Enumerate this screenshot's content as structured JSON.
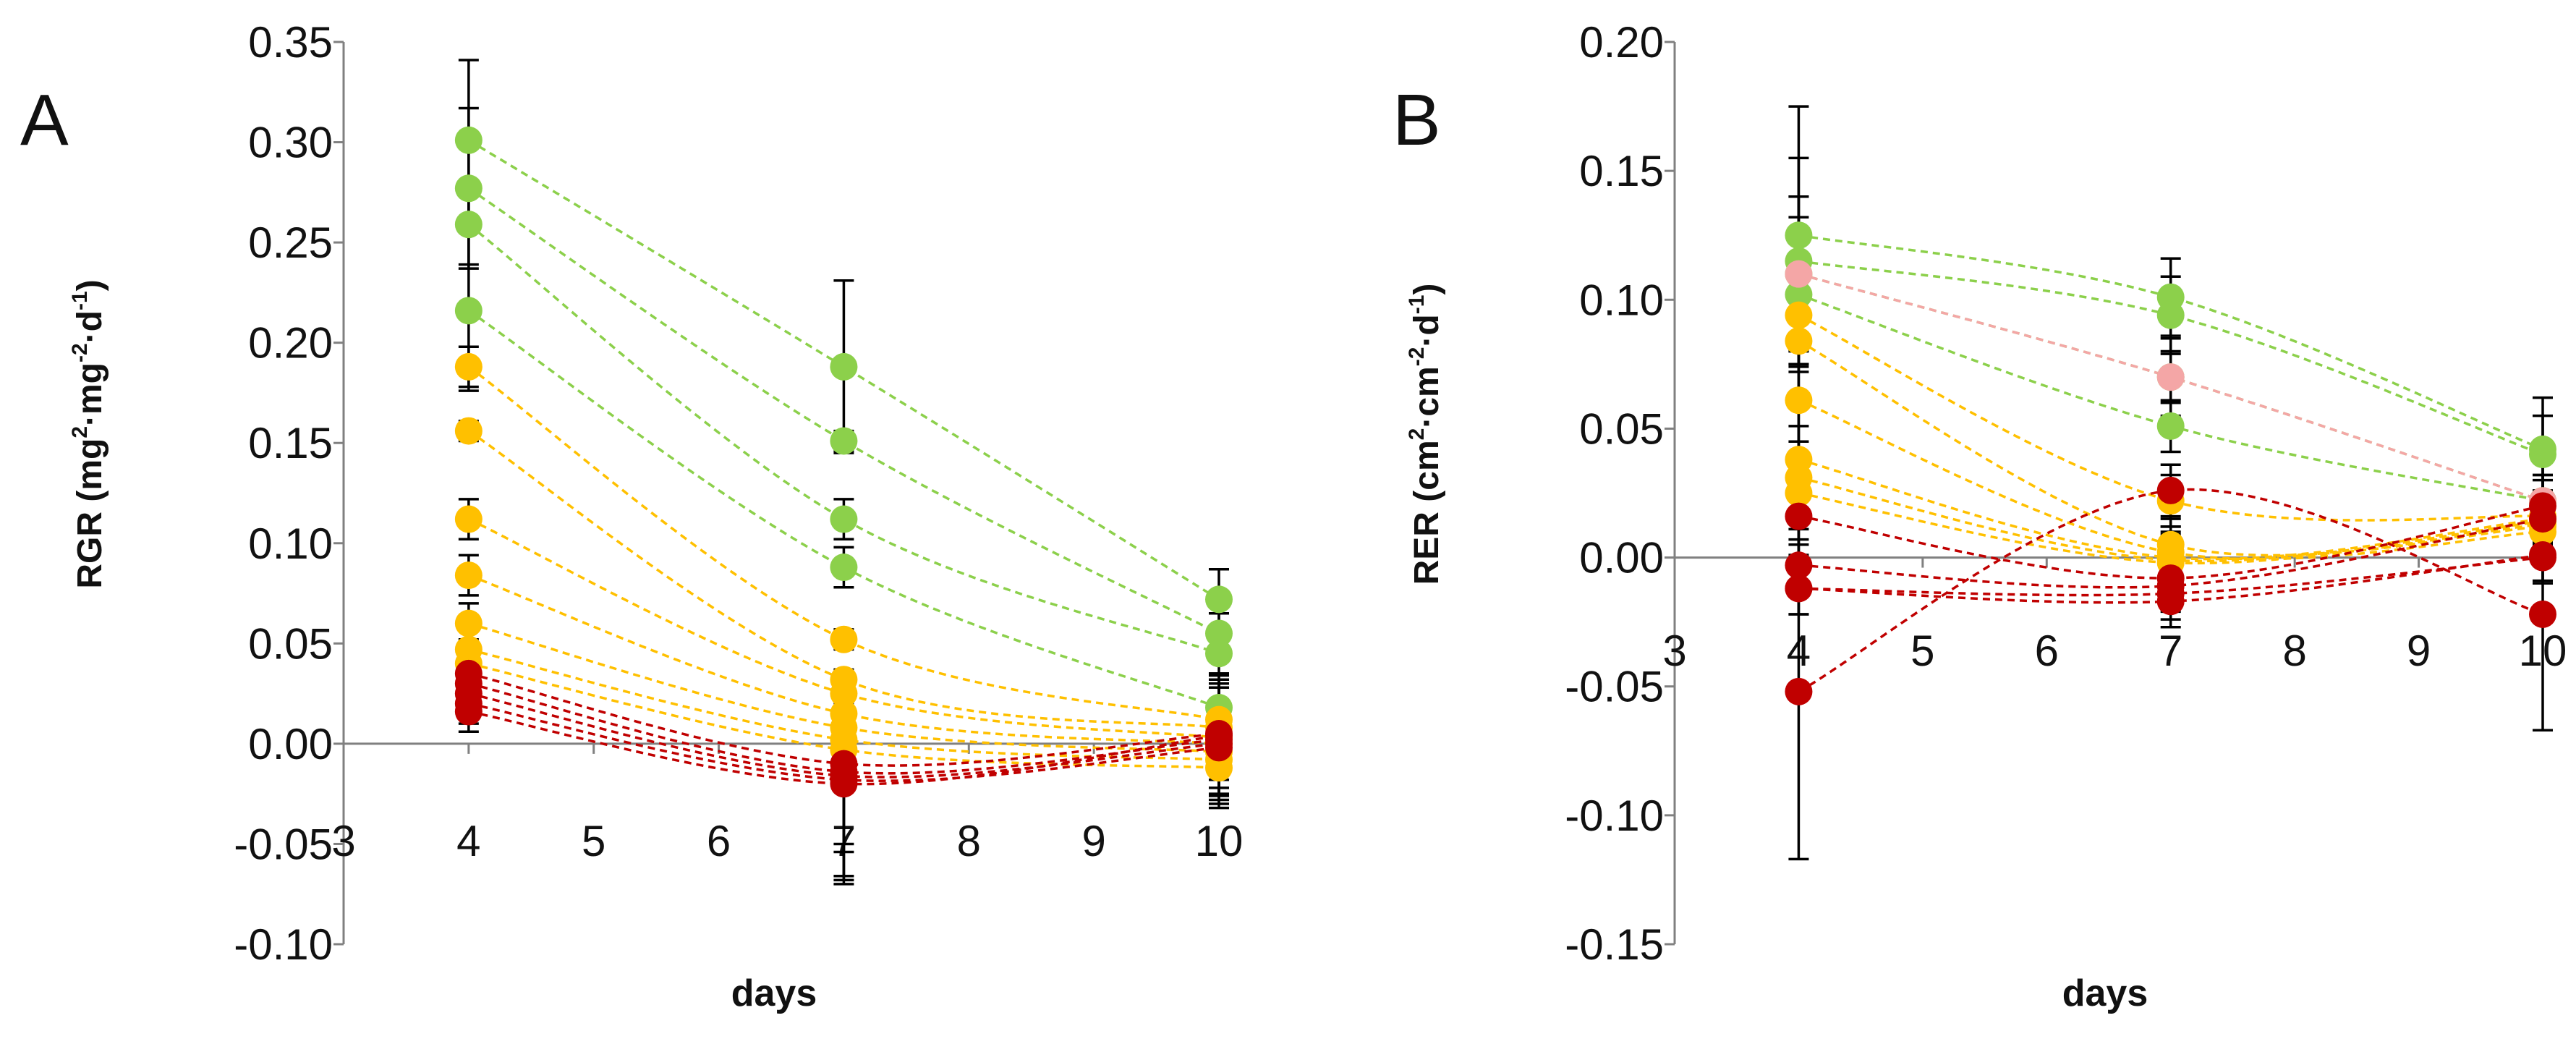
{
  "colors": {
    "green": "#8cd04b",
    "yellow": "#ffc000",
    "red": "#c00000",
    "pink": "#f4a6a6",
    "black": "#000000"
  },
  "chart_data": [
    {
      "panel": "A",
      "type": "line",
      "title": "",
      "xlabel": "days",
      "ylabel": "RGR (mg²·mg⁻²·d⁻¹)",
      "ylabel_parts": {
        "main": "RGR (mg",
        "sup1": "2",
        "mid1": "·mg",
        "sup2": "-2",
        "mid2": "·d",
        "sup3": "-1",
        "end": ")"
      },
      "xlim": [
        3,
        10
      ],
      "ylim": [
        -0.1,
        0.35
      ],
      "x_ticks": [
        "3",
        "4",
        "5",
        "6",
        "7",
        "8",
        "9",
        "10"
      ],
      "y_ticks": [
        "0.35",
        "0.30",
        "0.25",
        "0.20",
        "0.15",
        "0.10",
        "0.05",
        "0.00",
        "-0.05",
        "-0.10"
      ],
      "x": [
        4,
        7,
        10
      ],
      "series": [
        {
          "color": "green",
          "values": [
            0.301,
            0.188,
            0.072
          ],
          "err": [
            0.04,
            0.043,
            0.015
          ]
        },
        {
          "color": "green",
          "values": [
            0.277,
            0.151,
            0.055
          ],
          "err": [
            0.04,
            0.005,
            0.01
          ]
        },
        {
          "color": "green",
          "values": [
            0.259,
            0.112,
            0.045
          ],
          "err": [
            0.02,
            0.01,
            0.01
          ]
        },
        {
          "color": "green",
          "values": [
            0.216,
            0.088,
            0.018
          ],
          "err": [
            0.04,
            0.01,
            0.01
          ]
        },
        {
          "color": "yellow",
          "values": [
            0.188,
            0.052,
            0.012
          ],
          "err": [
            0.01,
            0.005,
            0.01
          ]
        },
        {
          "color": "yellow",
          "values": [
            0.156,
            0.032,
            0.008
          ],
          "err": [
            0.005,
            0.005,
            0.01
          ]
        },
        {
          "color": "yellow",
          "values": [
            0.112,
            0.025,
            0.003
          ],
          "err": [
            0.01,
            0.005,
            0.01
          ]
        },
        {
          "color": "yellow",
          "values": [
            0.084,
            0.015,
            0.0
          ],
          "err": [
            0.01,
            0.01,
            0.01
          ]
        },
        {
          "color": "yellow",
          "values": [
            0.06,
            0.008,
            -0.004
          ],
          "err": [
            0.01,
            0.01,
            0.01
          ]
        },
        {
          "color": "yellow",
          "values": [
            0.047,
            0.002,
            -0.008
          ],
          "err": [
            0.005,
            0.01,
            0.01
          ]
        },
        {
          "color": "yellow",
          "values": [
            0.04,
            -0.003,
            -0.012
          ],
          "err": [
            0.005,
            0.01,
            0.01
          ]
        },
        {
          "color": "red",
          "values": [
            0.035,
            -0.01,
            0.005
          ],
          "err": [
            0.01,
            0.04,
            0.03
          ]
        },
        {
          "color": "red",
          "values": [
            0.03,
            -0.014,
            0.002
          ],
          "err": [
            0.01,
            0.04,
            0.03
          ]
        },
        {
          "color": "red",
          "values": [
            0.025,
            -0.016,
            0.0
          ],
          "err": [
            0.01,
            0.05,
            0.03
          ]
        },
        {
          "color": "red",
          "values": [
            0.02,
            -0.018,
            -0.002
          ],
          "err": [
            0.01,
            0.05,
            0.03
          ]
        },
        {
          "color": "red",
          "values": [
            0.016,
            -0.02,
            0.004
          ],
          "err": [
            0.01,
            0.05,
            0.03
          ]
        }
      ]
    },
    {
      "panel": "B",
      "type": "line",
      "title": "",
      "xlabel": "days",
      "ylabel": "RER (cm²·cm⁻²·d⁻¹)",
      "ylabel_parts": {
        "main": "RER (cm",
        "sup1": "2",
        "mid1": "·cm",
        "sup2": "-2",
        "mid2": "·d",
        "sup3": "-1",
        "end": ")"
      },
      "xlim": [
        3,
        10
      ],
      "ylim": [
        -0.15,
        0.2
      ],
      "x_ticks": [
        "3",
        "4",
        "5",
        "6",
        "7",
        "8",
        "9",
        "10"
      ],
      "y_ticks": [
        "0.20",
        "0.15",
        "0.10",
        "0.05",
        "0.00",
        "-0.05",
        "-0.10",
        "-0.15"
      ],
      "x": [
        4,
        7,
        10
      ],
      "series": [
        {
          "color": "green",
          "values": [
            0.125,
            0.101,
            0.042
          ],
          "err": [
            0.05,
            0.015,
            0.02
          ]
        },
        {
          "color": "green",
          "values": [
            0.115,
            0.094,
            0.04
          ],
          "err": [
            0.04,
            0.015,
            0.015
          ]
        },
        {
          "color": "green",
          "values": [
            0.11,
            0.07,
            0.022
          ],
          "err": [
            0.03,
            0.015,
            0.015
          ]
        },
        {
          "color": "green",
          "values": [
            0.102,
            0.051,
            0.022
          ],
          "err": [
            0.03,
            0.01,
            0.01
          ]
        },
        {
          "color": "pink",
          "values": [
            0.11,
            0.07,
            0.022
          ],
          "err": [
            0.03,
            0.01,
            0.01
          ]
        },
        {
          "color": "yellow",
          "values": [
            0.094,
            0.022,
            0.016
          ],
          "err": [
            0.02,
            0.01,
            0.01
          ]
        },
        {
          "color": "yellow",
          "values": [
            0.084,
            0.005,
            0.012
          ],
          "err": [
            0.02,
            0.01,
            0.01
          ]
        },
        {
          "color": "yellow",
          "values": [
            0.061,
            0.002,
            0.01
          ],
          "err": [
            0.02,
            0.01,
            0.01
          ]
        },
        {
          "color": "yellow",
          "values": [
            0.038,
            0.0,
            0.015
          ],
          "err": [
            0.02,
            0.01,
            0.01
          ]
        },
        {
          "color": "yellow",
          "values": [
            0.031,
            -0.001,
            0.014
          ],
          "err": [
            0.02,
            0.01,
            0.01
          ]
        },
        {
          "color": "yellow",
          "values": [
            0.025,
            -0.002,
            0.013
          ],
          "err": [
            0.02,
            0.01,
            0.01
          ]
        },
        {
          "color": "red",
          "values": [
            0.016,
            -0.008,
            0.02
          ],
          "err": [
            0.015,
            0.01,
            0.01
          ]
        },
        {
          "color": "red",
          "values": [
            -0.003,
            -0.011,
            0.015
          ],
          "err": [
            0.01,
            0.01,
            0.01
          ]
        },
        {
          "color": "red",
          "values": [
            -0.012,
            -0.014,
            0.0
          ],
          "err": [
            0.01,
            0.01,
            0.01
          ]
        },
        {
          "color": "red",
          "values": [
            -0.012,
            -0.017,
            0.001
          ],
          "err": [
            0.01,
            0.01,
            0.01
          ]
        },
        {
          "color": "red",
          "values": [
            -0.052,
            0.026,
            -0.022
          ],
          "err": [
            0.065,
            0.01,
            0.045
          ]
        }
      ]
    }
  ]
}
